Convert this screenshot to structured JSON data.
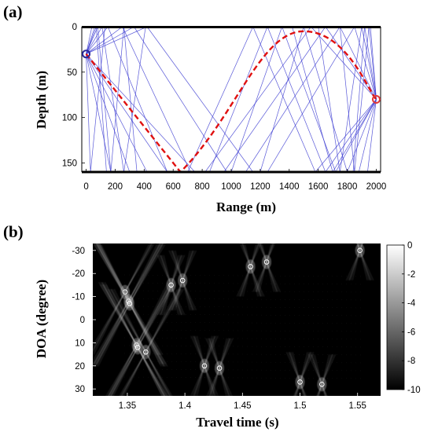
{
  "panels": {
    "a": {
      "label": "(a)",
      "xlabel": "Range (m)",
      "ylabel": "Depth (m)",
      "xticks": [
        "0",
        "200",
        "400",
        "600",
        "800",
        "1000",
        "1200",
        "1400",
        "1600",
        "1800",
        "2000"
      ],
      "yticks": [
        "0",
        "50",
        "100",
        "150"
      ]
    },
    "b": {
      "label": "(b)",
      "xlabel": "Travel time (s)",
      "ylabel": "DOA (degree)",
      "xticks": [
        "1.35",
        "1.4",
        "1.45",
        "1.5",
        "1.55"
      ],
      "yticks": [
        "-30",
        "-20",
        "-10",
        "0",
        "10",
        "20",
        "30"
      ],
      "colorbar_ticks": [
        "0",
        "-2",
        "-4",
        "-6",
        "-8",
        "-10"
      ]
    }
  },
  "chart_data": [
    {
      "type": "line",
      "subtype": "ray-trace",
      "xlabel": "Range (m)",
      "ylabel": "Depth (m)",
      "xlim": [
        -30,
        2030
      ],
      "ylim": [
        0,
        160
      ],
      "y_reversed": true,
      "surface_depth": 0,
      "bottom_depth": 160,
      "colors": {
        "rays": "#3b3bd1",
        "eigenray": "#e01010",
        "source": "#2a2a9a",
        "receiver": "#e03a3a"
      },
      "source": {
        "range": 0,
        "depth": 30
      },
      "receiver": {
        "range": 2000,
        "depth": 80
      },
      "eigenray": {
        "range": [
          0,
          650,
          1500,
          2000
        ],
        "depth": [
          30,
          160,
          5,
          80
        ]
      },
      "rays_from_source": [
        {
          "range": [
            0,
            150,
            560
          ],
          "depth": [
            30,
            0,
            160
          ]
        },
        {
          "range": [
            0,
            250,
            720
          ],
          "depth": [
            30,
            0,
            160
          ]
        },
        {
          "range": [
            0,
            330,
            970
          ],
          "depth": [
            30,
            0,
            160
          ]
        },
        {
          "range": [
            0,
            420,
            1150
          ],
          "depth": [
            30,
            0,
            160
          ]
        },
        {
          "range": [
            0,
            110,
            260,
            410
          ],
          "depth": [
            30,
            0,
            160,
            0
          ]
        },
        {
          "range": [
            0,
            80,
            170,
            260,
            350
          ],
          "depth": [
            30,
            0,
            160,
            0,
            160
          ]
        },
        {
          "range": [
            0,
            70,
            140
          ],
          "depth": [
            30,
            0,
            160
          ]
        },
        {
          "range": [
            0,
            170
          ],
          "depth": [
            30,
            160
          ]
        },
        {
          "range": [
            0,
            300
          ],
          "depth": [
            30,
            160
          ]
        },
        {
          "range": [
            0,
            420
          ],
          "depth": [
            30,
            160
          ]
        },
        {
          "range": [
            0,
            560
          ],
          "depth": [
            30,
            160
          ]
        },
        {
          "range": [
            0,
            750
          ],
          "depth": [
            30,
            160
          ]
        },
        {
          "range": [
            0,
            40
          ],
          "depth": [
            30,
            0
          ]
        },
        {
          "range": [
            0,
            60
          ],
          "depth": [
            30,
            0
          ]
        },
        {
          "range": [
            0,
            30,
            130
          ],
          "depth": [
            30,
            160,
            0
          ]
        }
      ],
      "rays_from_receiver": [
        {
          "range": [
            2000,
            1850,
            1250
          ],
          "depth": [
            80,
            0,
            160
          ]
        },
        {
          "range": [
            2000,
            1750,
            1100
          ],
          "depth": [
            80,
            0,
            160
          ]
        },
        {
          "range": [
            2000,
            1650,
            950
          ],
          "depth": [
            80,
            0,
            160
          ]
        },
        {
          "range": [
            2000,
            1550,
            820
          ],
          "depth": [
            80,
            0,
            160
          ]
        },
        {
          "range": [
            2000,
            1800,
            1500,
            1200
          ],
          "depth": [
            80,
            160,
            0,
            160
          ]
        },
        {
          "range": [
            2000,
            1720,
            1350,
            1000
          ],
          "depth": [
            80,
            160,
            0,
            160
          ]
        },
        {
          "range": [
            2000,
            1650,
            1250,
            850
          ],
          "depth": [
            80,
            160,
            0,
            160
          ]
        },
        {
          "range": [
            2000,
            1580,
            1150,
            700
          ],
          "depth": [
            80,
            160,
            0,
            160
          ]
        },
        {
          "range": [
            2000,
            1900,
            1750,
            1600
          ],
          "depth": [
            80,
            0,
            160,
            0
          ]
        },
        {
          "range": [
            2000,
            1950,
            1850,
            1750
          ],
          "depth": [
            80,
            0,
            160,
            0
          ]
        },
        {
          "range": [
            2000,
            1940
          ],
          "depth": [
            80,
            160
          ]
        },
        {
          "range": [
            2000,
            1880
          ],
          "depth": [
            80,
            160
          ]
        },
        {
          "range": [
            2000,
            1960
          ],
          "depth": [
            80,
            0
          ]
        },
        {
          "range": [
            2000,
            1920,
            1840
          ],
          "depth": [
            80,
            0,
            160
          ]
        },
        {
          "range": [
            2000,
            1700,
            1420
          ],
          "depth": [
            80,
            160,
            0
          ]
        }
      ]
    },
    {
      "type": "heatmap",
      "xlabel": "Travel time (s)",
      "ylabel": "DOA (degree)",
      "xlim": [
        1.32,
        1.57
      ],
      "ylim": [
        -33,
        33
      ],
      "y_reversed": true,
      "colormap": "gray",
      "clim": [
        -10,
        0
      ],
      "arrivals": [
        {
          "time": 1.348,
          "doa": -12
        },
        {
          "time": 1.351,
          "doa": -8
        },
        {
          "time": 1.352,
          "doa": -7
        },
        {
          "time": 1.358,
          "doa": 11
        },
        {
          "time": 1.359,
          "doa": 12
        },
        {
          "time": 1.366,
          "doa": 14
        },
        {
          "time": 1.388,
          "doa": -15
        },
        {
          "time": 1.398,
          "doa": -17
        },
        {
          "time": 1.417,
          "doa": 20
        },
        {
          "time": 1.43,
          "doa": 21
        },
        {
          "time": 1.457,
          "doa": -23
        },
        {
          "time": 1.471,
          "doa": -25
        },
        {
          "time": 1.5,
          "doa": 27
        },
        {
          "time": 1.519,
          "doa": 28
        },
        {
          "time": 1.552,
          "doa": -30
        }
      ]
    }
  ]
}
